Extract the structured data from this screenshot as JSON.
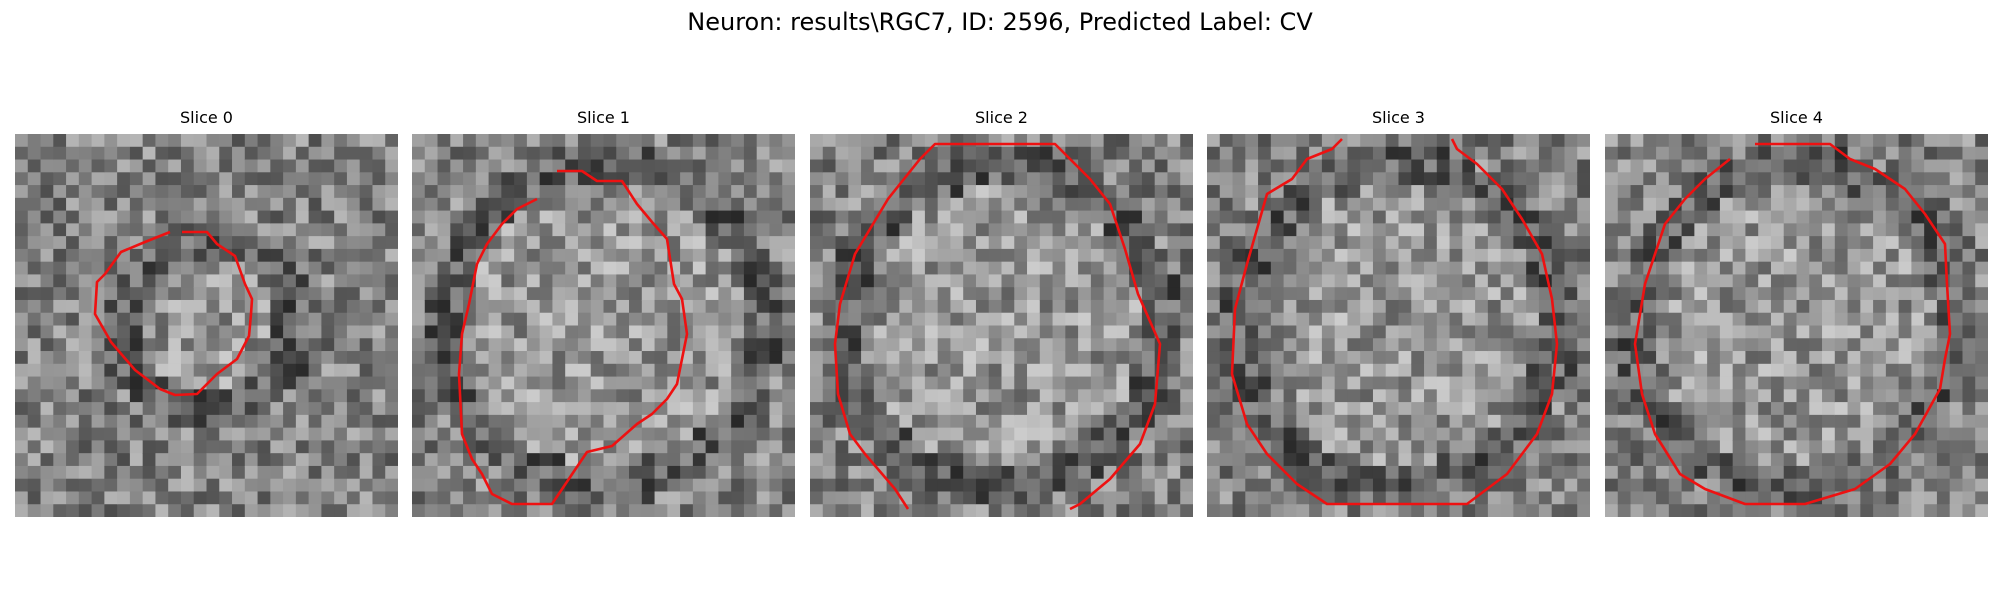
{
  "figure": {
    "title": "Neuron: results\\RGC7, ID: 2596, Predicted Label: CV",
    "contour_color": "#ee1111",
    "colormap": "gray",
    "panels": [
      {
        "title": "Slice 0"
      },
      {
        "title": "Slice 1"
      },
      {
        "title": "Slice 2"
      },
      {
        "title": "Slice 3"
      },
      {
        "title": "Slice 4"
      }
    ]
  }
}
